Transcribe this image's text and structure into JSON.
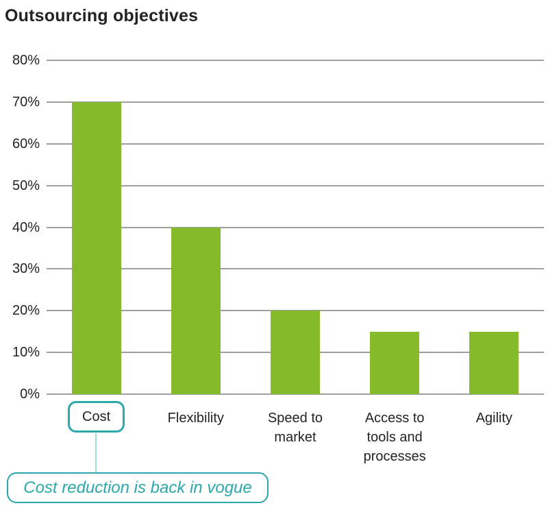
{
  "chart_data": {
    "type": "bar",
    "title": "Outsourcing objectives",
    "categories": [
      "Cost",
      "Flexibility",
      "Speed to market",
      "Access to tools and processes",
      "Agility"
    ],
    "category_display": [
      "Cost",
      "Flexibility",
      "Speed to\nmarket",
      "Access to\ntools and\nprocesses",
      "Agility"
    ],
    "values": [
      70,
      40,
      20,
      15,
      15
    ],
    "unit": "%",
    "xlabel": "",
    "ylabel": "",
    "ylim": [
      0,
      80
    ],
    "y_ticks": [
      80,
      70,
      60,
      50,
      40,
      30,
      20,
      10,
      0
    ],
    "y_tick_labels": [
      "80%",
      "70%",
      "60%",
      "50%",
      "40%",
      "30%",
      "20%",
      "10%",
      "0%"
    ],
    "grid": true,
    "legend": false,
    "colors": {
      "bar": "#85BB2A",
      "gridline": "#9E9E9E",
      "text": "#232323",
      "accent": "#2AA8AC",
      "connector": "#A5DBDC"
    }
  },
  "annotation": {
    "highlighted_category": "Cost",
    "callout_text": "Cost reduction is back in vogue"
  }
}
